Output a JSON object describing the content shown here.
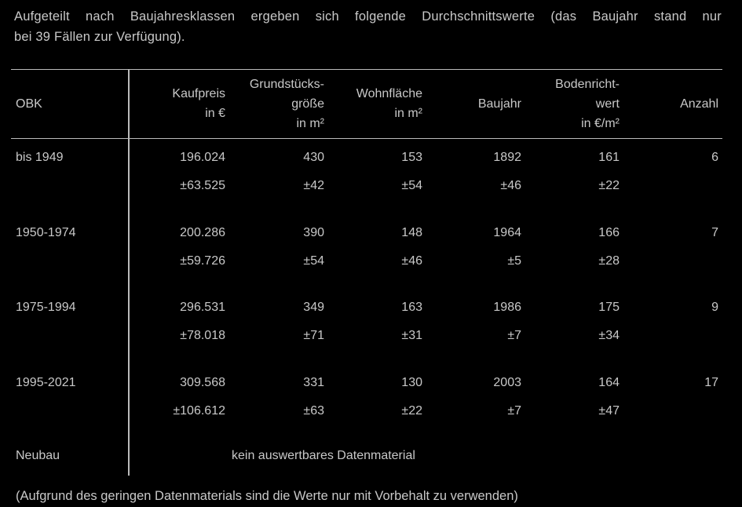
{
  "intro": [
    "Aufgeteilt nach Baujahresklassen ergeben sich folgende Durchschnittswerte (das Baujahr stand nur",
    "bei 39 Fällen zur Verfügung)."
  ],
  "table": {
    "headers": [
      [
        "OBK"
      ],
      [
        "Kaufpreis",
        "in €"
      ],
      [
        "Grundstücks-",
        "größe",
        "in m²"
      ],
      [
        "Wohnfläche",
        "in m²"
      ],
      [
        "Baujahr"
      ],
      [
        "Bodenricht-",
        "wert",
        "in €/m²"
      ],
      [
        "Anzahl"
      ]
    ],
    "rows": [
      {
        "label": "bis 1949",
        "mean": [
          "196.024",
          "430",
          "153",
          "1892",
          "161"
        ],
        "sd": [
          "±63.525",
          "±42",
          "±54",
          "±46",
          "±22"
        ],
        "count": "6"
      },
      {
        "label": "1950-1974",
        "mean": [
          "200.286",
          "390",
          "148",
          "1964",
          "166"
        ],
        "sd": [
          "±59.726",
          "±54",
          "±46",
          "±5",
          "±28"
        ],
        "count": "7"
      },
      {
        "label": "1975-1994",
        "mean": [
          "296.531",
          "349",
          "163",
          "1986",
          "175"
        ],
        "sd": [
          "±78.018",
          "±71",
          "±31",
          "±7",
          "±34"
        ],
        "count": "9"
      },
      {
        "label": "1995-2021",
        "mean": [
          "309.568",
          "331",
          "130",
          "2003",
          "164"
        ],
        "sd": [
          "±106.612",
          "±63",
          "±22",
          "±7",
          "±47"
        ],
        "count": "17"
      }
    ],
    "neubau": {
      "label": "Neubau",
      "note": "kein auswertbares Datenmaterial"
    }
  },
  "footnote": "(Aufgrund des geringen Datenmaterials sind die Werte nur mit Vorbehalt zu verwenden)"
}
